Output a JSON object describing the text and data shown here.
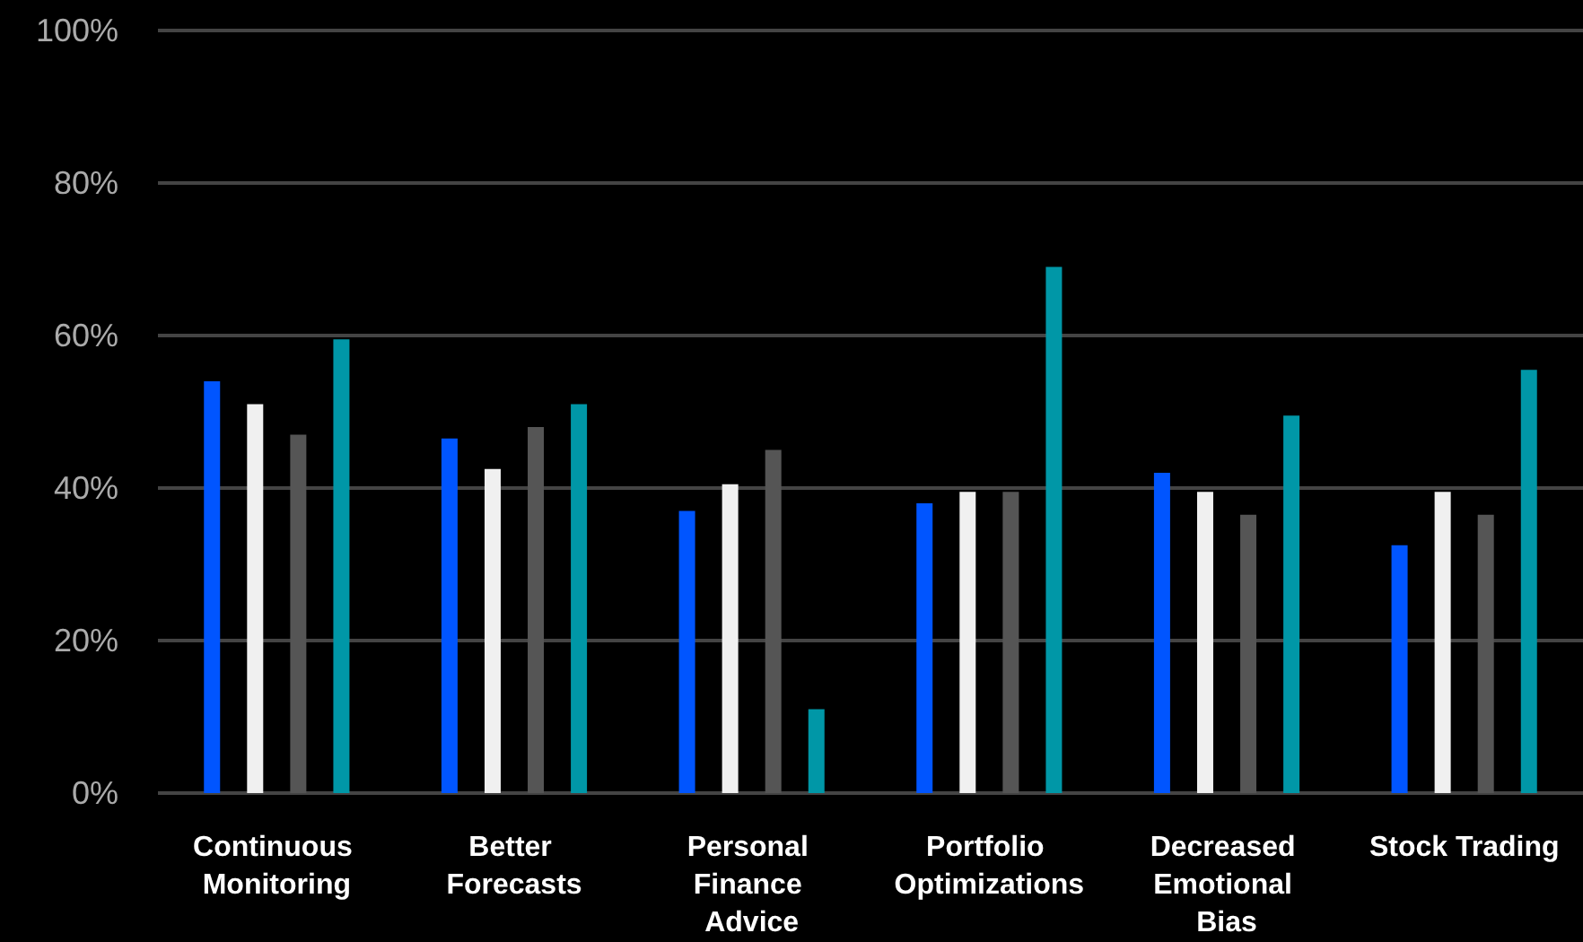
{
  "chart_data": {
    "type": "bar",
    "categories": [
      "Continuous Monitoring",
      "Better Forecasts",
      "Personal Finance Advice",
      "Portfolio Optimizations",
      "Decreased Emotional Bias",
      "Stock Trading"
    ],
    "series": [
      {
        "color": "#0055ff",
        "values": [
          54,
          46.5,
          37,
          38,
          42,
          32.5
        ]
      },
      {
        "color": "#f0f0f0",
        "values": [
          51,
          42.5,
          40.5,
          39.5,
          39.5,
          39.5
        ]
      },
      {
        "color": "#555555",
        "values": [
          47,
          48,
          45,
          39.5,
          36.5,
          36.5
        ]
      },
      {
        "color": "#0097a7",
        "values": [
          59.5,
          51,
          11,
          69,
          49.5,
          55.5
        ]
      }
    ],
    "ylim": [
      0,
      100
    ],
    "yticks": [
      {
        "value": 0,
        "label": "0%"
      },
      {
        "value": 20,
        "label": "20%"
      },
      {
        "value": 40,
        "label": "40%"
      },
      {
        "value": 60,
        "label": "60%"
      },
      {
        "value": 80,
        "label": "80%"
      },
      {
        "value": 100,
        "label": "100%"
      }
    ],
    "grid": "y"
  }
}
